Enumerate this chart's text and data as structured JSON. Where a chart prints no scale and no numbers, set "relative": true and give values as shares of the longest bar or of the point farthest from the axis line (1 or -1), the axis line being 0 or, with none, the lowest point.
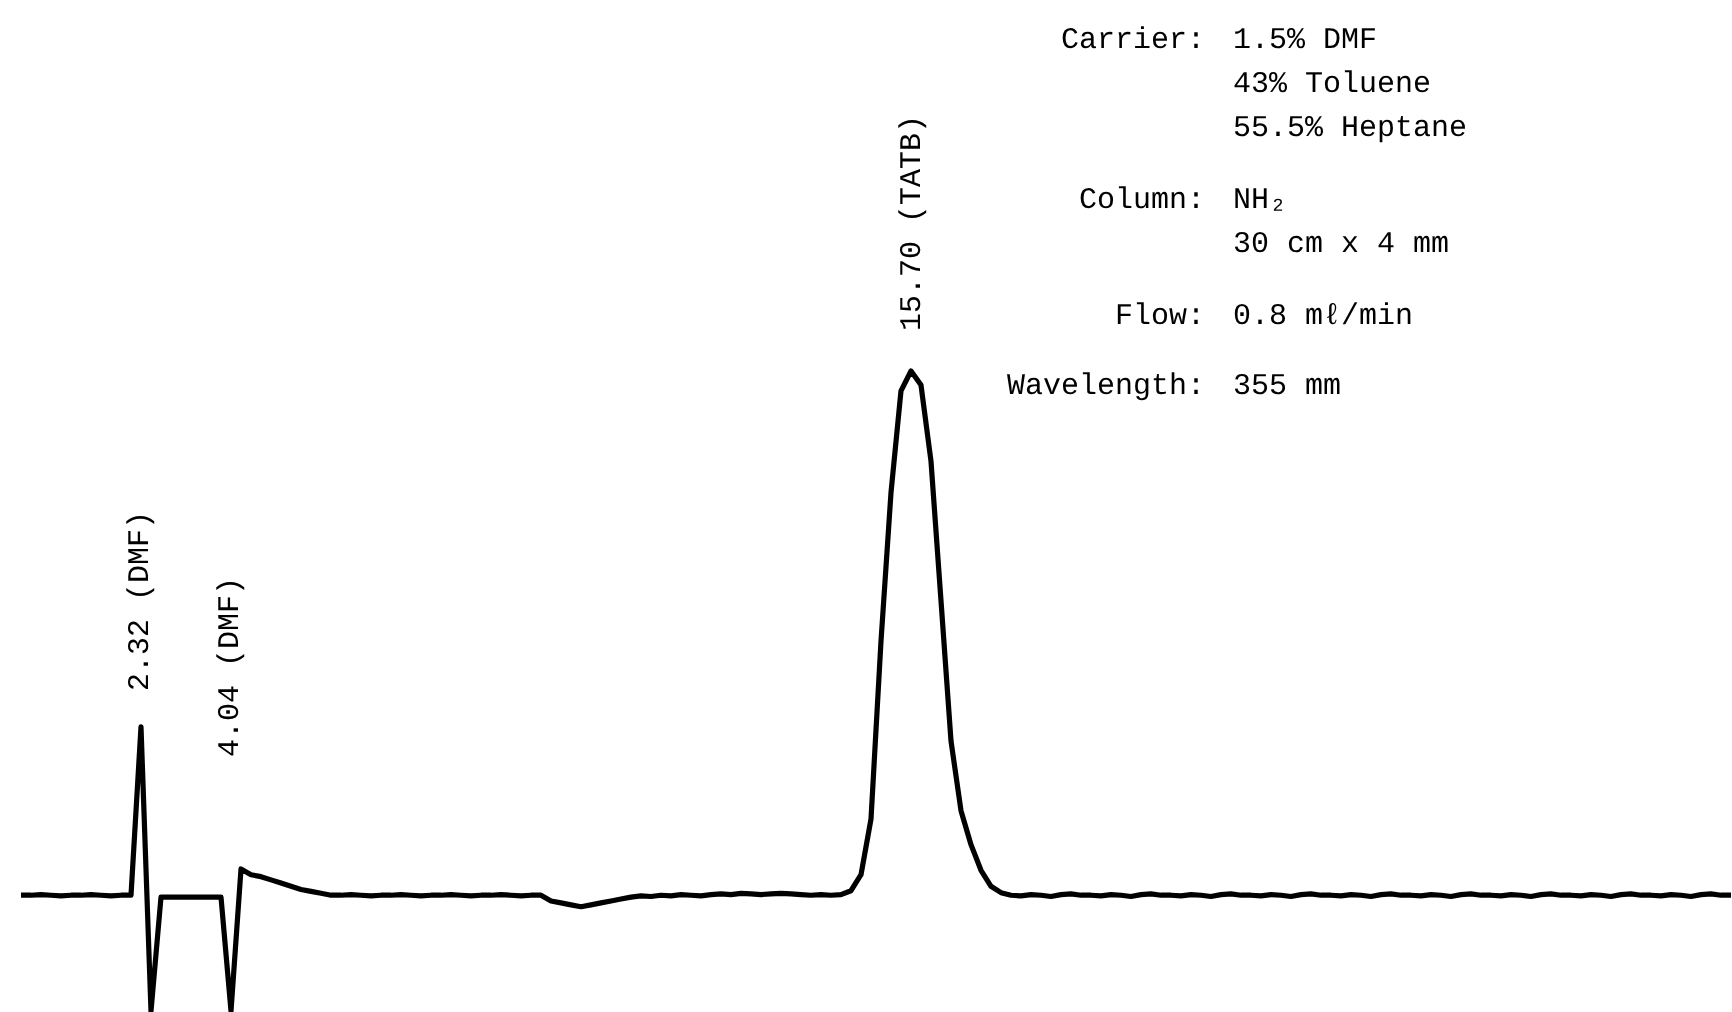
{
  "chart_data": {
    "type": "line",
    "relative": true,
    "tick_labels": false,
    "grid": false,
    "categories": [
      null,
      null,
      null,
      null,
      null,
      null,
      null,
      null,
      null,
      null,
      null,
      null,
      null,
      null,
      null,
      null,
      null,
      null,
      null,
      null,
      null,
      null,
      null,
      null,
      null,
      null,
      null,
      null,
      null,
      null,
      null,
      null,
      null,
      null,
      null,
      null,
      null,
      null,
      null,
      null,
      null,
      null,
      null,
      null,
      null,
      null,
      null,
      null,
      null,
      null,
      null,
      null,
      null,
      null,
      null,
      null,
      null,
      null,
      null,
      null,
      null,
      null,
      null,
      null,
      null,
      null,
      null,
      null,
      null,
      null,
      null,
      null,
      null,
      null,
      null,
      null,
      null,
      null,
      null,
      null,
      null,
      null,
      null,
      null,
      null,
      null,
      null,
      null,
      null,
      null,
      null,
      null,
      null,
      null,
      null,
      null,
      null,
      null,
      null,
      null,
      null,
      null,
      null,
      null,
      null,
      null,
      null,
      null,
      null,
      null,
      null,
      null,
      null,
      null,
      null,
      null,
      null,
      null,
      null,
      null,
      null,
      null,
      null,
      null,
      null,
      null,
      null,
      null,
      null,
      null,
      null,
      null,
      null,
      null,
      null,
      null,
      null,
      null,
      null,
      null,
      null,
      null,
      null,
      null,
      null,
      null,
      null,
      null,
      null,
      null,
      null,
      null,
      null,
      null,
      null,
      null,
      null,
      null,
      null,
      null,
      null,
      null,
      null,
      null,
      null,
      null,
      null,
      null,
      null,
      null,
      null,
      null
    ],
    "series": [
      {
        "color": "#000000",
        "values": [
          0.181,
          0.181,
          0.182,
          0.181,
          0.18,
          0.181,
          0.181,
          0.182,
          0.181,
          0.18,
          0.181,
          0.181,
          0.444,
          0,
          0.178,
          0.178,
          0.178,
          0.178,
          0.178,
          0.178,
          0.178,
          0,
          0.222,
          0.213,
          0.21,
          0.205,
          0.2,
          0.195,
          0.19,
          0.187,
          0.184,
          0.181,
          0.181,
          0.182,
          0.181,
          0.18,
          0.181,
          0.181,
          0.182,
          0.181,
          0.18,
          0.181,
          0.181,
          0.182,
          0.181,
          0.18,
          0.181,
          0.181,
          0.182,
          0.181,
          0.18,
          0.181,
          0.181,
          0.172,
          0.169,
          0.166,
          0.163,
          0.166,
          0.169,
          0.172,
          0.175,
          0.178,
          0.18,
          0.179,
          0.181,
          0.18,
          0.182,
          0.181,
          0.18,
          0.182,
          0.183,
          0.182,
          0.184,
          0.183,
          0.182,
          0.183,
          0.184,
          0.183,
          0.182,
          0.181,
          0.182,
          0.181,
          0.182,
          0.188,
          0.213,
          0.3,
          0.578,
          0.81,
          0.969,
          1,
          0.978,
          0.859,
          0.641,
          0.422,
          0.313,
          0.26,
          0.22,
          0.195,
          0.185,
          0.181,
          0.18,
          0.182,
          0.181,
          0.179,
          0.182,
          0.183,
          0.181,
          0.181,
          0.18,
          0.182,
          0.181,
          0.179,
          0.182,
          0.183,
          0.181,
          0.181,
          0.18,
          0.182,
          0.181,
          0.179,
          0.182,
          0.183,
          0.181,
          0.181,
          0.18,
          0.182,
          0.181,
          0.179,
          0.182,
          0.183,
          0.181,
          0.181,
          0.18,
          0.182,
          0.181,
          0.179,
          0.182,
          0.183,
          0.181,
          0.181,
          0.18,
          0.182,
          0.181,
          0.179,
          0.182,
          0.183,
          0.181,
          0.181,
          0.18,
          0.182,
          0.181,
          0.179,
          0.182,
          0.183,
          0.181,
          0.181,
          0.18,
          0.182,
          0.181,
          0.179,
          0.182,
          0.183,
          0.181,
          0.181,
          0.18,
          0.182,
          0.181,
          0.179,
          0.182,
          0.183,
          0.181,
          0.181
        ]
      }
    ],
    "annotations": [
      "2.32 (DMF)",
      "4.04 (DMF)",
      "15.70 (TATB)",
      "Carrier:",
      "1.5% DMF",
      "43% Toluene",
      "55.5% Heptane",
      "Column:",
      "NH₂",
      "30 cm x 4 mm",
      "Flow:",
      "0.8 mℓ/min",
      "Wavelength:",
      "355 mm"
    ]
  }
}
